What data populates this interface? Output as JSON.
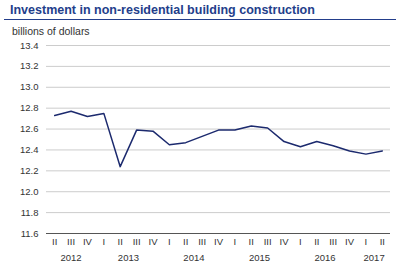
{
  "chart_data": {
    "type": "line",
    "title": "Investment in non-residential building construction",
    "subtitle": "billions of dollars",
    "categories": [
      "II",
      "III",
      "IV",
      "I",
      "II",
      "III",
      "IV",
      "I",
      "II",
      "III",
      "IV",
      "I",
      "II",
      "III",
      "IV",
      "I",
      "II",
      "III",
      "IV",
      "I",
      "II"
    ],
    "periods": [
      {
        "label": "2012",
        "count": 3
      },
      {
        "label": "2013",
        "count": 4
      },
      {
        "label": "2014",
        "count": 4
      },
      {
        "label": "2015",
        "count": 4
      },
      {
        "label": "2016",
        "count": 4
      },
      {
        "label": "2017",
        "count": 2
      }
    ],
    "values": [
      12.73,
      12.77,
      12.72,
      12.75,
      12.24,
      12.59,
      12.58,
      12.45,
      12.47,
      12.53,
      12.59,
      12.59,
      12.63,
      12.61,
      12.48,
      12.43,
      12.48,
      12.44,
      12.39,
      12.36,
      12.39
    ],
    "color": "#1c2a6e",
    "ylim": [
      11.6,
      13.4
    ],
    "yticks": [
      11.6,
      11.8,
      {
        "value": 12,
        "label": "12.0"
      },
      12.2,
      12.4,
      12.6,
      12.8,
      {
        "value": 13,
        "label": "13.0"
      },
      13.2,
      13.4
    ],
    "grid": true
  }
}
